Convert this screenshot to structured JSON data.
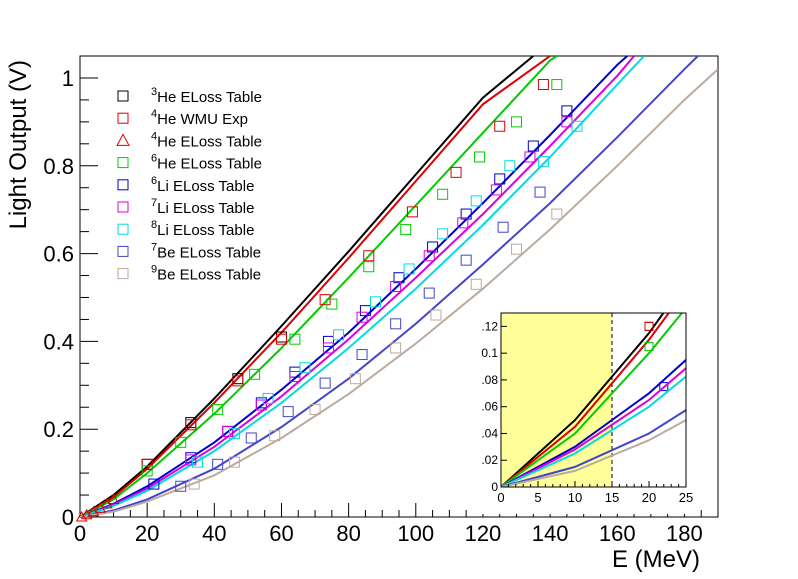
{
  "chart_data": {
    "type": "scatter",
    "xlabel": "E (MeV)",
    "ylabel": "Light Output (V)",
    "xlim": [
      0,
      190
    ],
    "ylim": [
      0,
      1.05
    ],
    "x_ticks": [
      0,
      20,
      40,
      60,
      80,
      100,
      120,
      140,
      160,
      180
    ],
    "y_ticks": [
      0,
      0.2,
      0.4,
      0.6,
      0.8,
      1
    ],
    "x_tick_labels": [
      "0",
      "20",
      "40",
      "60",
      "80",
      "100",
      "120",
      "140",
      "160",
      "180"
    ],
    "y_tick_labels": [
      "0",
      "0.2",
      "0.4",
      "0.6",
      "0.8",
      "1"
    ],
    "grid": false,
    "legend_position": "top-left",
    "series": [
      {
        "mass": "3",
        "label": "He ELoss Table",
        "color": "#000000",
        "marker": "square",
        "points": [
          [
            20,
            0.12
          ],
          [
            33,
            0.215
          ],
          [
            47,
            0.315
          ],
          [
            60,
            0.41
          ]
        ],
        "curve": [
          [
            0,
            0.0
          ],
          [
            10,
            0.05
          ],
          [
            20,
            0.115
          ],
          [
            40,
            0.27
          ],
          [
            60,
            0.435
          ],
          [
            80,
            0.605
          ],
          [
            100,
            0.78
          ],
          [
            120,
            0.955
          ],
          [
            135,
            1.05
          ]
        ]
      },
      {
        "mass": "4",
        "label": "He WMU Exp",
        "color": "#dd0000",
        "marker": "square",
        "points": [
          [
            20,
            0.12
          ],
          [
            33,
            0.21
          ],
          [
            47,
            0.31
          ],
          [
            60,
            0.405
          ],
          [
            73,
            0.495
          ],
          [
            86,
            0.595
          ],
          [
            99,
            0.695
          ],
          [
            112,
            0.785
          ],
          [
            125,
            0.89
          ],
          [
            138,
            0.985
          ]
        ],
        "curve": [
          [
            0,
            0.0
          ],
          [
            10,
            0.045
          ],
          [
            20,
            0.11
          ],
          [
            40,
            0.26
          ],
          [
            60,
            0.42
          ],
          [
            80,
            0.59
          ],
          [
            100,
            0.765
          ],
          [
            120,
            0.94
          ],
          [
            140,
            1.05
          ]
        ]
      },
      {
        "mass": "4",
        "label": "He ELoss Table",
        "color": "#dd0000",
        "marker": "triangle",
        "points": [
          [
            0.5,
            0.0
          ],
          [
            2,
            0.005
          ],
          [
            4,
            0.012
          ],
          [
            6,
            0.02
          ],
          [
            8,
            0.03
          ],
          [
            10,
            0.04
          ]
        ],
        "curve": []
      },
      {
        "mass": "6",
        "label": "He ELoss Table",
        "color": "#00cc00",
        "marker": "square",
        "points": [
          [
            20,
            0.105
          ],
          [
            30,
            0.17
          ],
          [
            41,
            0.245
          ],
          [
            52,
            0.325
          ],
          [
            64,
            0.405
          ],
          [
            75,
            0.485
          ],
          [
            86,
            0.57
          ],
          [
            97,
            0.655
          ],
          [
            108,
            0.735
          ],
          [
            119,
            0.82
          ],
          [
            130,
            0.9
          ],
          [
            142,
            0.985
          ]
        ],
        "curve": [
          [
            0,
            0.0
          ],
          [
            10,
            0.04
          ],
          [
            20,
            0.1
          ],
          [
            40,
            0.235
          ],
          [
            60,
            0.385
          ],
          [
            80,
            0.545
          ],
          [
            100,
            0.71
          ],
          [
            120,
            0.875
          ],
          [
            140,
            1.04
          ],
          [
            142,
            1.05
          ]
        ]
      },
      {
        "mass": "6",
        "label": "Li ELoss Table",
        "color": "#0000cc",
        "marker": "square",
        "points": [
          [
            22,
            0.075
          ],
          [
            33,
            0.135
          ],
          [
            44,
            0.195
          ],
          [
            54,
            0.26
          ],
          [
            64,
            0.33
          ],
          [
            74,
            0.4
          ],
          [
            85,
            0.47
          ],
          [
            95,
            0.545
          ],
          [
            105,
            0.615
          ],
          [
            115,
            0.69
          ],
          [
            125,
            0.77
          ],
          [
            135,
            0.845
          ],
          [
            145,
            0.925
          ]
        ],
        "curve": [
          [
            0,
            0.0
          ],
          [
            10,
            0.03
          ],
          [
            20,
            0.07
          ],
          [
            40,
            0.17
          ],
          [
            60,
            0.29
          ],
          [
            80,
            0.42
          ],
          [
            100,
            0.565
          ],
          [
            120,
            0.715
          ],
          [
            140,
            0.87
          ],
          [
            160,
            1.03
          ],
          [
            163,
            1.05
          ]
        ]
      },
      {
        "mass": "7",
        "label": "Li ELoss Table",
        "color": "#dd00dd",
        "marker": "square",
        "points": [
          [
            33,
            0.13
          ],
          [
            44,
            0.195
          ],
          [
            54,
            0.255
          ],
          [
            64,
            0.32
          ],
          [
            74,
            0.385
          ],
          [
            84,
            0.455
          ],
          [
            94,
            0.525
          ],
          [
            104,
            0.595
          ],
          [
            114,
            0.67
          ],
          [
            124,
            0.745
          ],
          [
            134,
            0.82
          ],
          [
            145,
            0.9
          ]
        ],
        "curve": [
          [
            0,
            0.0
          ],
          [
            10,
            0.028
          ],
          [
            20,
            0.065
          ],
          [
            40,
            0.16
          ],
          [
            60,
            0.275
          ],
          [
            80,
            0.405
          ],
          [
            100,
            0.545
          ],
          [
            120,
            0.69
          ],
          [
            140,
            0.845
          ],
          [
            160,
            1.005
          ],
          [
            165,
            1.05
          ]
        ]
      },
      {
        "mass": "8",
        "label": "Li ELoss Table",
        "color": "#00dddd",
        "marker": "square",
        "points": [
          [
            35,
            0.125
          ],
          [
            46,
            0.19
          ],
          [
            56,
            0.27
          ],
          [
            67,
            0.34
          ],
          [
            77,
            0.415
          ],
          [
            88,
            0.49
          ],
          [
            98,
            0.565
          ],
          [
            108,
            0.645
          ],
          [
            118,
            0.72
          ],
          [
            128,
            0.8
          ],
          [
            138,
            0.81
          ],
          [
            148,
            0.89
          ]
        ],
        "curve": [
          [
            0,
            0.0
          ],
          [
            10,
            0.025
          ],
          [
            20,
            0.06
          ],
          [
            40,
            0.15
          ],
          [
            60,
            0.26
          ],
          [
            80,
            0.385
          ],
          [
            100,
            0.52
          ],
          [
            120,
            0.665
          ],
          [
            140,
            0.82
          ],
          [
            160,
            0.985
          ],
          [
            168,
            1.05
          ]
        ]
      },
      {
        "mass": "7",
        "label": "Be ELoss Table",
        "color": "#4444cc",
        "marker": "square",
        "points": [
          [
            30,
            0.07
          ],
          [
            41,
            0.12
          ],
          [
            51,
            0.18
          ],
          [
            62,
            0.24
          ],
          [
            73,
            0.305
          ],
          [
            84,
            0.37
          ],
          [
            94,
            0.44
          ],
          [
            104,
            0.51
          ],
          [
            115,
            0.585
          ],
          [
            126,
            0.66
          ],
          [
            137,
            0.74
          ]
        ],
        "curve": [
          [
            0,
            0.0
          ],
          [
            10,
            0.015
          ],
          [
            20,
            0.04
          ],
          [
            40,
            0.11
          ],
          [
            60,
            0.205
          ],
          [
            80,
            0.315
          ],
          [
            100,
            0.44
          ],
          [
            120,
            0.575
          ],
          [
            140,
            0.715
          ],
          [
            160,
            0.865
          ],
          [
            180,
            1.02
          ],
          [
            184,
            1.05
          ]
        ]
      },
      {
        "mass": "9",
        "label": "Be ELoss Table",
        "color": "#bbaaa0",
        "marker": "square",
        "points": [
          [
            34,
            0.075
          ],
          [
            46,
            0.125
          ],
          [
            58,
            0.185
          ],
          [
            70,
            0.245
          ],
          [
            82,
            0.315
          ],
          [
            94,
            0.385
          ],
          [
            106,
            0.46
          ],
          [
            118,
            0.53
          ],
          [
            130,
            0.61
          ],
          [
            142,
            0.69
          ]
        ],
        "curve": [
          [
            0,
            0.0
          ],
          [
            10,
            0.012
          ],
          [
            20,
            0.035
          ],
          [
            40,
            0.095
          ],
          [
            60,
            0.18
          ],
          [
            80,
            0.28
          ],
          [
            100,
            0.395
          ],
          [
            120,
            0.52
          ],
          [
            140,
            0.655
          ],
          [
            160,
            0.8
          ],
          [
            180,
            0.95
          ],
          [
            190,
            1.02
          ]
        ]
      }
    ],
    "inset": {
      "xlim": [
        0,
        25
      ],
      "ylim": [
        0,
        0.13
      ],
      "x_ticks": [
        0,
        5,
        10,
        15,
        20,
        25
      ],
      "y_ticks": [
        0,
        0.02,
        0.04,
        0.06,
        0.08,
        0.1,
        0.12
      ],
      "x_tick_labels": [
        "0",
        "5",
        "10",
        "15",
        "20",
        "25"
      ],
      "y_tick_labels": [
        "0",
        ".02",
        ".04",
        ".06",
        ".08",
        "0.1",
        ".12"
      ],
      "highlight_range": [
        0,
        15
      ],
      "highlight_color": "#ffff99"
    }
  }
}
